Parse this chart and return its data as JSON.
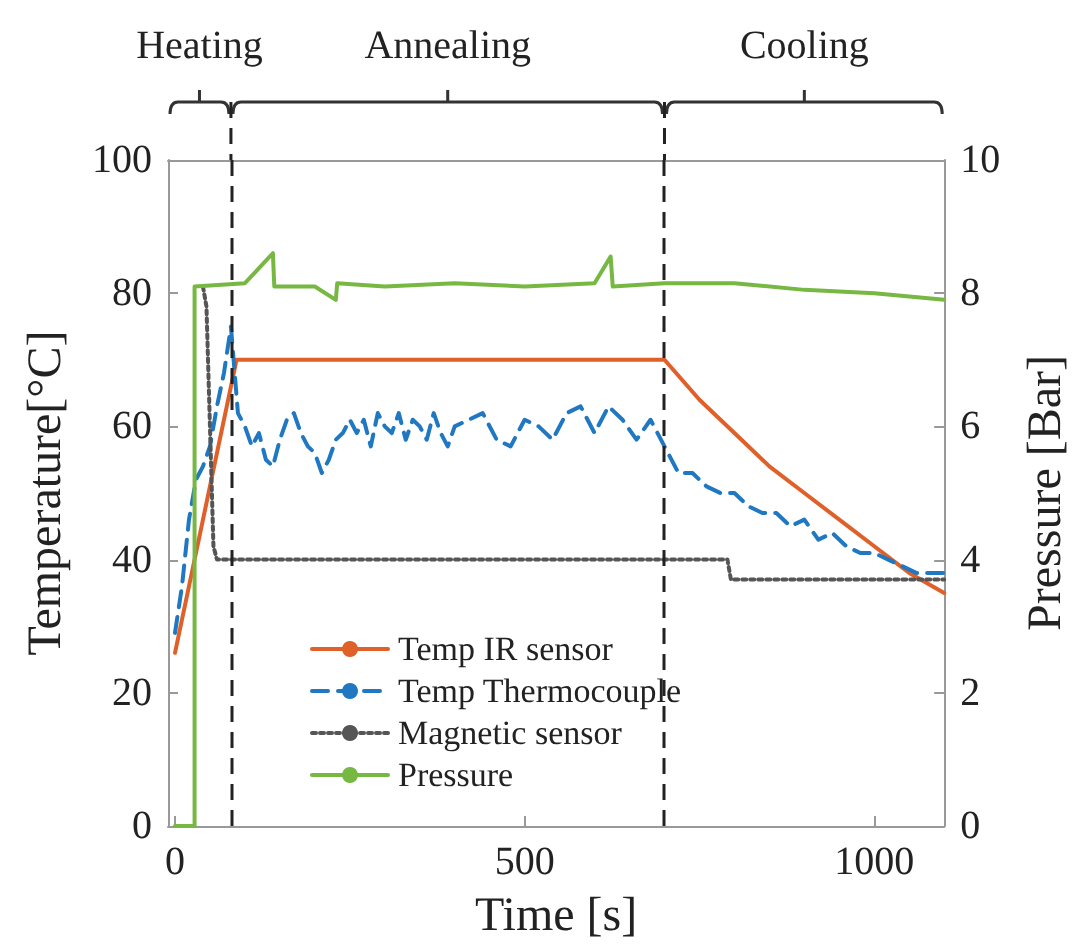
{
  "chart_data": {
    "type": "line",
    "xlabel": "Time [s]",
    "ylabel": "Temperature[°C]",
    "y2label": "Pressure [Bar]",
    "xlim": [
      -10,
      1100
    ],
    "xticks": [
      0,
      500,
      1000
    ],
    "ylim": [
      0,
      100
    ],
    "yticks": [
      0,
      20,
      40,
      60,
      80,
      100
    ],
    "y2lim": [
      0,
      10
    ],
    "y2ticks": [
      0,
      2,
      4,
      6,
      8,
      10
    ],
    "grid": false,
    "legend": "bottom left",
    "marker": "none",
    "annotations": [
      "Heating",
      "Annealing",
      "Cooling"
    ],
    "ref_lines": [
      {
        "axis": "x",
        "value": 80,
        "color": "#222222",
        "line_style": "dashed"
      },
      {
        "axis": "x",
        "value": 700,
        "color": "#222222",
        "line_style": "dashed"
      }
    ],
    "series": [
      {
        "name": "Temp IR sensor",
        "color": "#e0602a",
        "line_style": "solid",
        "x": [
          0,
          88,
          700,
          750,
          800,
          850,
          900,
          950,
          1000,
          1050,
          1100
        ],
        "values": [
          26,
          70,
          70,
          64,
          59,
          54,
          50,
          46,
          42,
          38,
          35
        ]
      },
      {
        "name": "Temp Thermocouple",
        "color": "#1f78c1",
        "line_style": "dashed",
        "x": [
          0,
          10,
          20,
          30,
          40,
          50,
          60,
          70,
          80,
          90,
          100,
          110,
          120,
          130,
          140,
          150,
          160,
          170,
          180,
          190,
          200,
          210,
          220,
          230,
          240,
          250,
          260,
          270,
          280,
          290,
          300,
          310,
          320,
          330,
          340,
          350,
          360,
          370,
          380,
          390,
          400,
          420,
          440,
          460,
          480,
          500,
          520,
          540,
          560,
          580,
          600,
          620,
          640,
          660,
          680,
          700,
          720,
          740,
          760,
          780,
          800,
          820,
          840,
          860,
          880,
          900,
          920,
          940,
          960,
          980,
          1000,
          1020,
          1040,
          1060,
          1080,
          1100
        ],
        "values": [
          29,
          36,
          46,
          52,
          54,
          57,
          63,
          68,
          75,
          62,
          60,
          57,
          59,
          55,
          54,
          58,
          61,
          62,
          59,
          57,
          56,
          53,
          55,
          58,
          59,
          61,
          59,
          61,
          57,
          62,
          60,
          59,
          62,
          58,
          61,
          60,
          58,
          62,
          59,
          57,
          60,
          61,
          62,
          58,
          57,
          61,
          60,
          58,
          62,
          63,
          59,
          63,
          61,
          58,
          61,
          57,
          53,
          53,
          51,
          50,
          50,
          48,
          47,
          47,
          45,
          46,
          43,
          44,
          42,
          41,
          41,
          40,
          39,
          38,
          38,
          38
        ]
      },
      {
        "name": "Magnetic sensor",
        "color": "#555555",
        "line_style": "dotted",
        "x": [
          40,
          45,
          55,
          60,
          790,
          795,
          1100
        ],
        "values": [
          81,
          78,
          42,
          40,
          40,
          37,
          37
        ]
      },
      {
        "name": "Pressure",
        "color": "#77b843",
        "line_style": "solid",
        "axis": "y2",
        "x": [
          0,
          28,
          28,
          100,
          140,
          142,
          200,
          230,
          232,
          300,
          400,
          500,
          600,
          623,
          626,
          700,
          800,
          900,
          1000,
          1100
        ],
        "values": [
          0,
          0,
          8.1,
          8.15,
          8.6,
          8.1,
          8.1,
          7.9,
          8.15,
          8.1,
          8.15,
          8.1,
          8.15,
          8.55,
          8.1,
          8.15,
          8.15,
          8.05,
          8.0,
          7.9
        ]
      }
    ]
  }
}
